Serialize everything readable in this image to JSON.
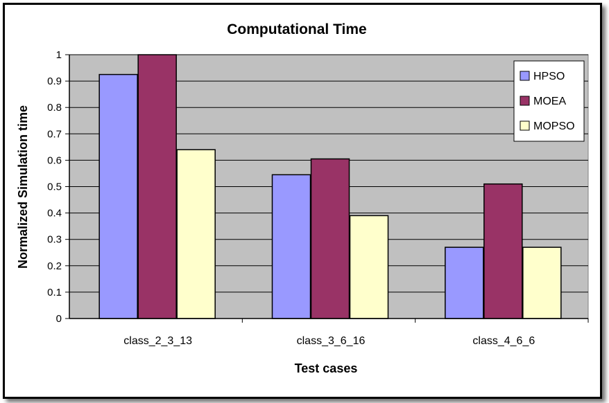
{
  "chart_data": {
    "type": "bar",
    "title": "Computational Time",
    "xlabel": "Test cases",
    "ylabel": "Normalized Simulation time",
    "categories": [
      "class_2_3_13",
      "class_3_6_16",
      "class_4_6_6"
    ],
    "series": [
      {
        "name": "HPSO",
        "values": [
          0.925,
          0.545,
          0.27
        ],
        "color": "#9999ff"
      },
      {
        "name": "MOEA",
        "values": [
          1.0,
          0.605,
          0.51
        ],
        "color": "#993366"
      },
      {
        "name": "MOPSO",
        "values": [
          0.64,
          0.39,
          0.27
        ],
        "color": "#ffffcc"
      }
    ],
    "ylim": [
      0,
      1
    ],
    "yticks": [
      "0",
      "0.1",
      "0.2",
      "0.3",
      "0.4",
      "0.5",
      "0.6",
      "0.7",
      "0.8",
      "0.9",
      "1"
    ],
    "grid": true,
    "plot_background": "#c0c0c0",
    "legend_position": "top-right"
  }
}
